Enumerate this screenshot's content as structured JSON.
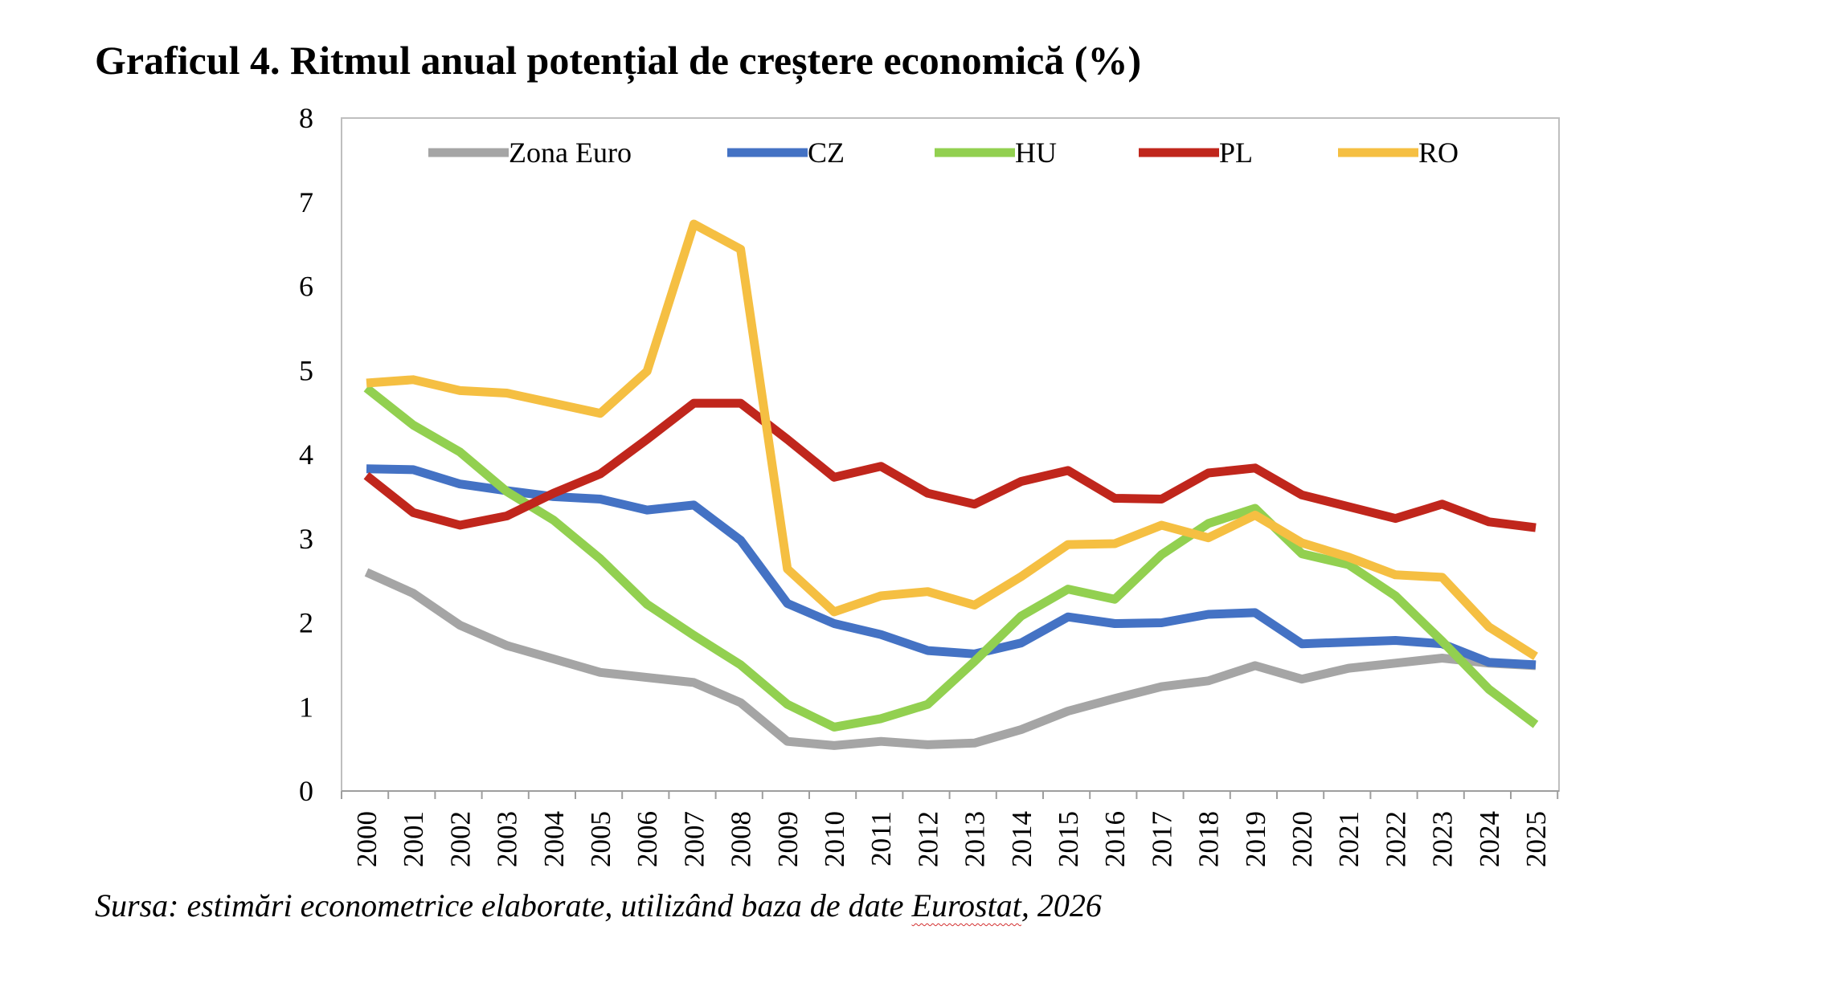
{
  "title": "Graficul 4. Ritmul anual potențial de creștere economică (%)",
  "source": {
    "before": "Sursa: estimări econometrice elaborate, utilizând baza de date ",
    "flagged": "Eurostat",
    "after": ", 2026"
  },
  "chart_data": {
    "type": "line",
    "title": "Graficul 4. Ritmul anual potențial de creștere economică (%)",
    "xlabel": "",
    "ylabel": "",
    "ylim": [
      0,
      8
    ],
    "yticks": [
      0,
      1,
      2,
      3,
      4,
      5,
      6,
      7,
      8
    ],
    "grid": false,
    "legend": "top",
    "categories": [
      "2000",
      "2001",
      "2002",
      "2003",
      "2004",
      "2005",
      "2006",
      "2007",
      "2008",
      "2009",
      "2010",
      "2011",
      "2012",
      "2013",
      "2014",
      "2015",
      "2016",
      "2017",
      "2018",
      "2019",
      "2020",
      "2021",
      "2022",
      "2023",
      "2024",
      "2025"
    ],
    "series": [
      {
        "name": "Zona Euro",
        "color": "#a5a5a5",
        "values": [
          2.6,
          2.35,
          1.97,
          1.73,
          1.57,
          1.41,
          1.35,
          1.29,
          1.05,
          0.59,
          0.54,
          0.59,
          0.55,
          0.57,
          0.73,
          0.95,
          1.1,
          1.24,
          1.31,
          1.49,
          1.33,
          1.46,
          1.52,
          1.58,
          1.52,
          1.49
        ]
      },
      {
        "name": "CZ",
        "color": "#4472c4",
        "values": [
          3.83,
          3.82,
          3.65,
          3.57,
          3.5,
          3.47,
          3.34,
          3.4,
          2.98,
          2.23,
          1.99,
          1.86,
          1.67,
          1.63,
          1.76,
          2.07,
          1.99,
          2.0,
          2.1,
          2.12,
          1.75,
          1.77,
          1.79,
          1.75,
          1.53,
          1.5
        ]
      },
      {
        "name": "HU",
        "color": "#92d050",
        "values": [
          4.79,
          4.35,
          4.03,
          3.56,
          3.22,
          2.76,
          2.22,
          1.85,
          1.5,
          1.03,
          0.76,
          0.86,
          1.03,
          1.54,
          2.08,
          2.4,
          2.28,
          2.81,
          3.18,
          3.36,
          2.82,
          2.69,
          2.32,
          1.78,
          1.21,
          0.79
        ]
      },
      {
        "name": "PL",
        "color": "#c0261c",
        "values": [
          3.75,
          3.31,
          3.16,
          3.27,
          3.54,
          3.77,
          4.18,
          4.61,
          4.61,
          4.18,
          3.73,
          3.86,
          3.54,
          3.41,
          3.68,
          3.81,
          3.48,
          3.47,
          3.78,
          3.84,
          3.52,
          3.38,
          3.24,
          3.41,
          3.2,
          3.13
        ]
      },
      {
        "name": "RO",
        "color": "#f5bf42",
        "values": [
          4.85,
          4.89,
          4.76,
          4.73,
          4.61,
          4.49,
          4.99,
          6.74,
          6.44,
          2.64,
          2.13,
          2.32,
          2.37,
          2.21,
          2.55,
          2.93,
          2.94,
          3.16,
          3.01,
          3.28,
          2.95,
          2.78,
          2.57,
          2.54,
          1.95,
          1.6
        ]
      }
    ]
  }
}
